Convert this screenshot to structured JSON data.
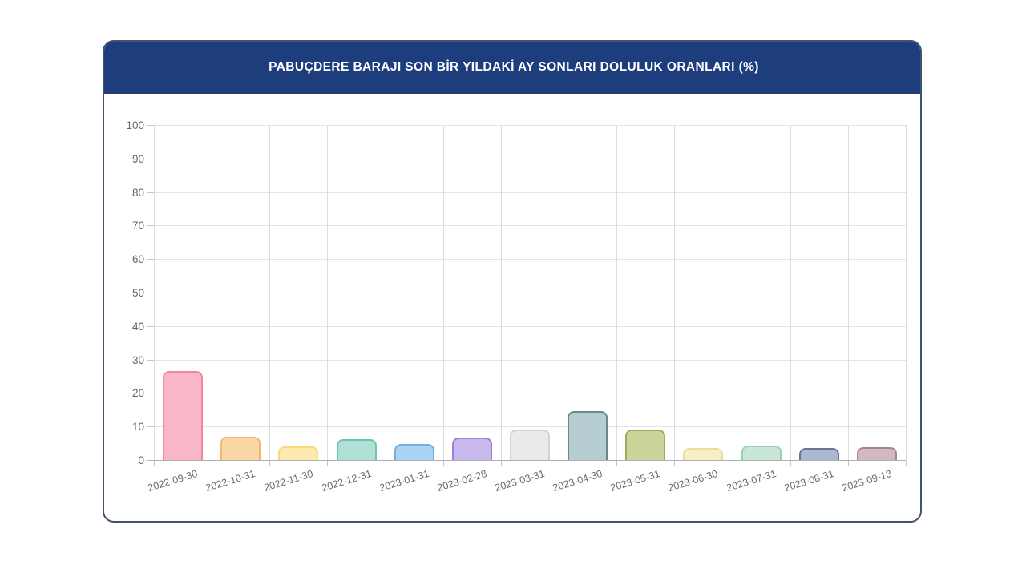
{
  "card": {
    "title": "PABUÇDERE BARAJI SON BİR YILDAKİ AY SONLARI DOLULUK ORANLARI (%)"
  },
  "chart_data": {
    "type": "bar",
    "title": "PABUÇDERE BARAJI SON BİR YILDAKİ AY SONLARI DOLULUK ORANLARI (%)",
    "xlabel": "",
    "ylabel": "",
    "ylim": [
      0,
      100
    ],
    "ytick_step": 10,
    "grid": true,
    "legend": false,
    "categories": [
      "2022-09-30",
      "2022-10-31",
      "2022-11-30",
      "2022-12-31",
      "2023-01-31",
      "2023-02-28",
      "2023-03-31",
      "2023-04-30",
      "2023-05-31",
      "2023-06-30",
      "2023-07-31",
      "2023-08-31",
      "2023-09-13"
    ],
    "values": [
      26.5,
      6.9,
      4.0,
      6.3,
      4.9,
      6.8,
      9.1,
      14.5,
      9.0,
      3.7,
      4.4,
      3.5,
      3.8
    ],
    "bar_colors": [
      {
        "fill": "#f9b6c6",
        "border": "#ee85a3"
      },
      {
        "fill": "#fbd7a5",
        "border": "#f4b76e"
      },
      {
        "fill": "#fdeaae",
        "border": "#f8d97c"
      },
      {
        "fill": "#b0e1d6",
        "border": "#6fc3b1"
      },
      {
        "fill": "#a9d4f3",
        "border": "#74afdf"
      },
      {
        "fill": "#c9b8ee",
        "border": "#9d82d8"
      },
      {
        "fill": "#eaeaea",
        "border": "#d2d2d4"
      },
      {
        "fill": "#b5cdd0",
        "border": "#6a878f"
      },
      {
        "fill": "#cdd49b",
        "border": "#a3aa60"
      },
      {
        "fill": "#f8efc7",
        "border": "#e9dca2"
      },
      {
        "fill": "#c9e7d6",
        "border": "#9bceb3"
      },
      {
        "fill": "#aab8d0",
        "border": "#64749c"
      },
      {
        "fill": "#d4b8c1",
        "border": "#a98495"
      }
    ]
  },
  "theme": {
    "header_bg": "#1e3d7c",
    "header_text": "#ffffff",
    "card_border": "#41536f",
    "page_bg": "#ffffff",
    "grid_color": "#e4e4e6",
    "axis_color": "#aeaeb2",
    "tick_label_color": "#62666d"
  }
}
